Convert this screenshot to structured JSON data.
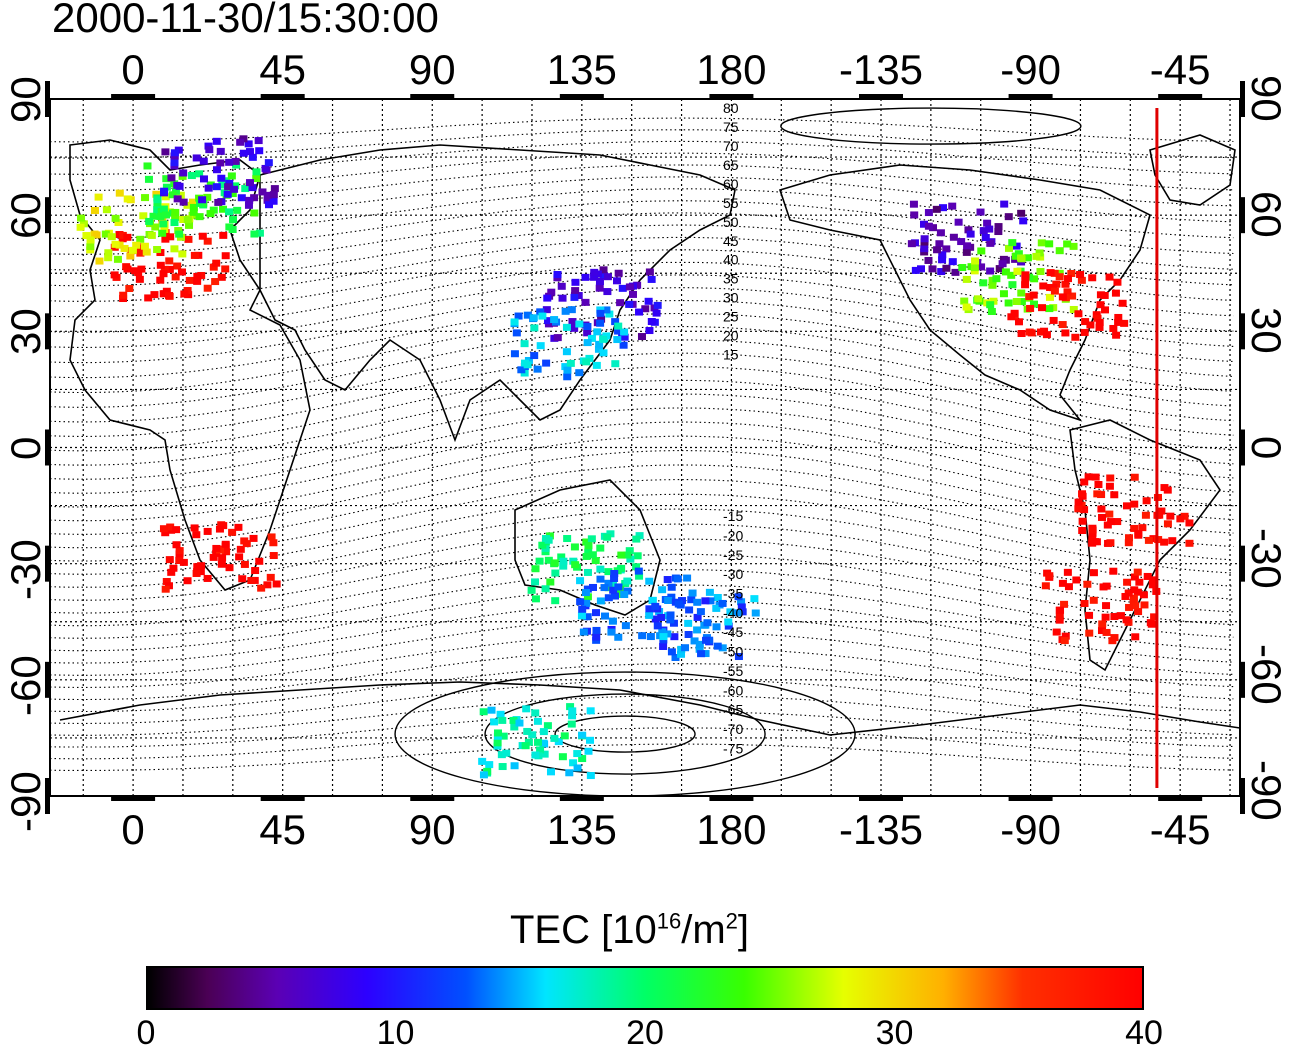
{
  "title": "2000-11-30/15:30:00",
  "lon_ticks": [
    {
      "value": 0,
      "label": "0"
    },
    {
      "value": 45,
      "label": "45"
    },
    {
      "value": 90,
      "label": "90"
    },
    {
      "value": 135,
      "label": "135"
    },
    {
      "value": 180,
      "label": "180"
    },
    {
      "value": 225,
      "label": "-135"
    },
    {
      "value": 270,
      "label": "-90"
    },
    {
      "value": 315,
      "label": "-45"
    }
  ],
  "lat_ticks": [
    {
      "value": 90,
      "label": "90"
    },
    {
      "value": 60,
      "label": "60"
    },
    {
      "value": 30,
      "label": "30"
    },
    {
      "value": 0,
      "label": "0"
    },
    {
      "value": -30,
      "label": "-30"
    },
    {
      "value": -60,
      "label": "-60"
    },
    {
      "value": -90,
      "label": "-90"
    }
  ],
  "contour_labels": [
    "80",
    "75",
    "70",
    "65",
    "60",
    "55",
    "50",
    "45",
    "40",
    "35",
    "30",
    "25",
    "20",
    "15",
    "-15",
    "-20",
    "-25",
    "-30",
    "-35",
    "-40",
    "-45",
    "-50",
    "-55",
    "-60",
    "-65",
    "-70",
    "-75"
  ],
  "colorbar": {
    "label": "TEC  [10",
    "label_sup1": "16",
    "label_mid": "/m",
    "label_sup2": "2",
    "label_end": "]",
    "min": 0,
    "max": 40,
    "ticks": [
      "0",
      "10",
      "20",
      "30",
      "40"
    ]
  },
  "chart_data": {
    "type": "heatmap",
    "title": "2000-11-30/15:30:00",
    "xlabel": "",
    "ylabel": "",
    "xlim": [
      -25,
      333
    ],
    "ylim": [
      -90,
      90
    ],
    "colorbar_range": [
      0,
      40
    ],
    "terminator_longitude": 308,
    "regions": [
      {
        "lon": 10,
        "lat": 48,
        "tec": 40
      },
      {
        "lon": 0,
        "lat": 58,
        "tec": 28
      },
      {
        "lon": 20,
        "lat": 65,
        "tec": 22
      },
      {
        "lon": 25,
        "lat": 72,
        "tec": 7
      },
      {
        "lon": 140,
        "lat": 38,
        "tec": 7
      },
      {
        "lon": 130,
        "lat": 28,
        "tec": 15
      },
      {
        "lon": 250,
        "lat": 55,
        "tec": 6
      },
      {
        "lon": 265,
        "lat": 45,
        "tec": 25
      },
      {
        "lon": 280,
        "lat": 38,
        "tec": 40
      },
      {
        "lon": 300,
        "lat": -15,
        "tec": 40
      },
      {
        "lon": 290,
        "lat": -40,
        "tec": 40
      },
      {
        "lon": 25,
        "lat": -28,
        "tec": 40
      },
      {
        "lon": 135,
        "lat": -30,
        "tec": 20
      },
      {
        "lon": 150,
        "lat": -40,
        "tec": 13
      },
      {
        "lon": 170,
        "lat": -45,
        "tec": 13
      },
      {
        "lon": 120,
        "lat": -75,
        "tec": 18
      }
    ]
  }
}
